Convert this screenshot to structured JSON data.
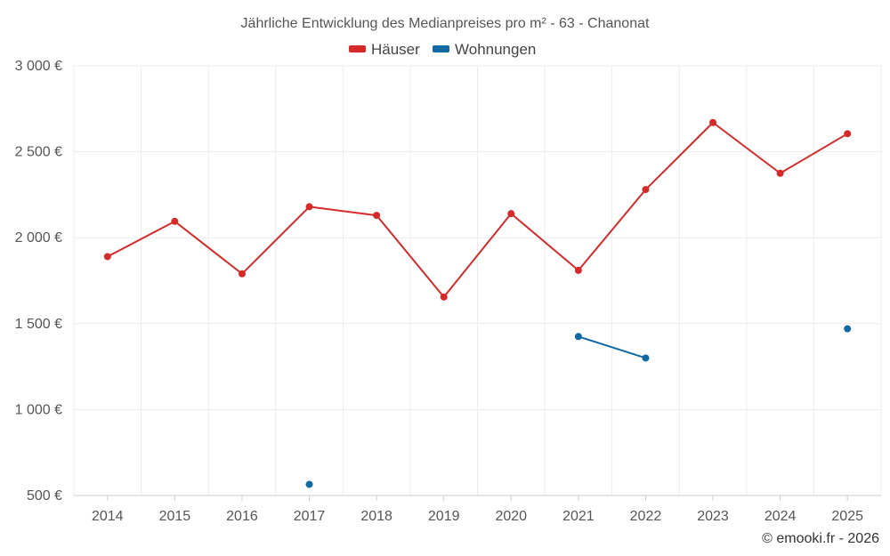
{
  "chart_data": {
    "type": "line",
    "title": "Jährliche Entwicklung des Medianpreises pro m² - 63 - Chanonat",
    "categories": [
      "2014",
      "2015",
      "2016",
      "2017",
      "2018",
      "2019",
      "2020",
      "2021",
      "2022",
      "2023",
      "2024",
      "2025"
    ],
    "series": [
      {
        "name": "Häuser",
        "color": "#d42a2a",
        "values": [
          1890,
          2095,
          1790,
          2180,
          2130,
          1655,
          2140,
          1810,
          2280,
          2670,
          2375,
          2605
        ]
      },
      {
        "name": "Wohnungen",
        "color": "#0f6aa3",
        "values": [
          null,
          null,
          null,
          565,
          null,
          null,
          null,
          1425,
          1300,
          null,
          null,
          1470
        ]
      }
    ],
    "ylim": [
      500,
      3000
    ],
    "yticks": [
      500,
      1000,
      1500,
      2000,
      2500,
      3000
    ],
    "ytick_labels": [
      "500 €",
      "1 000 €",
      "1 500 €",
      "2 000 €",
      "2 500 €",
      "3 000 €"
    ],
    "xlabel": "",
    "ylabel": "",
    "grid": true,
    "legend": "top-center"
  },
  "credit": "© emooki.fr - 2026"
}
